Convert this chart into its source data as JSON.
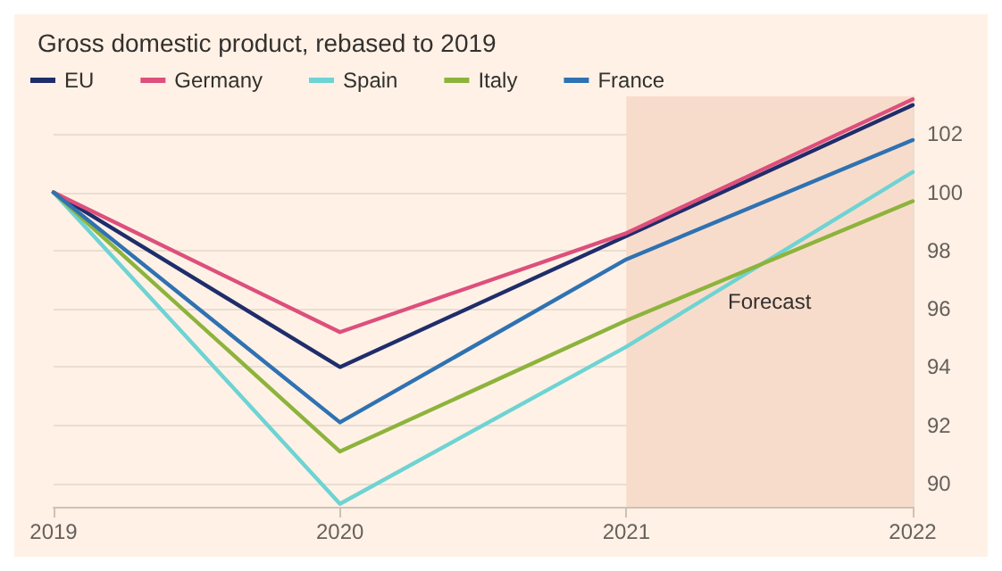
{
  "chart_data": {
    "type": "line",
    "title": "Gross domestic product, rebased to 2019",
    "x": [
      2019,
      2020,
      2021,
      2022
    ],
    "series": [
      {
        "name": "EU",
        "color": "#1f2d6b",
        "values": [
          100,
          94.0,
          98.5,
          103.0
        ]
      },
      {
        "name": "Germany",
        "color": "#dd4f7c",
        "values": [
          100,
          95.2,
          98.6,
          103.2
        ]
      },
      {
        "name": "Spain",
        "color": "#6ed3d3",
        "values": [
          100,
          89.3,
          94.7,
          100.7
        ]
      },
      {
        "name": "Italy",
        "color": "#8db33c",
        "values": [
          100,
          91.1,
          95.6,
          99.7
        ]
      },
      {
        "name": "France",
        "color": "#2f72b2",
        "values": [
          100,
          92.1,
          97.7,
          101.8
        ]
      }
    ],
    "xlim": [
      2019,
      2022
    ],
    "xticks": [
      2019,
      2020,
      2021,
      2022
    ],
    "ylim": [
      89.2,
      103.3
    ],
    "yticks": [
      90,
      92,
      94,
      96,
      98,
      100,
      102
    ],
    "bands": [
      {
        "axis": "x",
        "from": 2021,
        "to": 2022,
        "label": "Forecast",
        "color": "#f8dccb"
      }
    ],
    "grid": "y",
    "legend": "top left",
    "marker": "none",
    "line_style": "solid"
  }
}
